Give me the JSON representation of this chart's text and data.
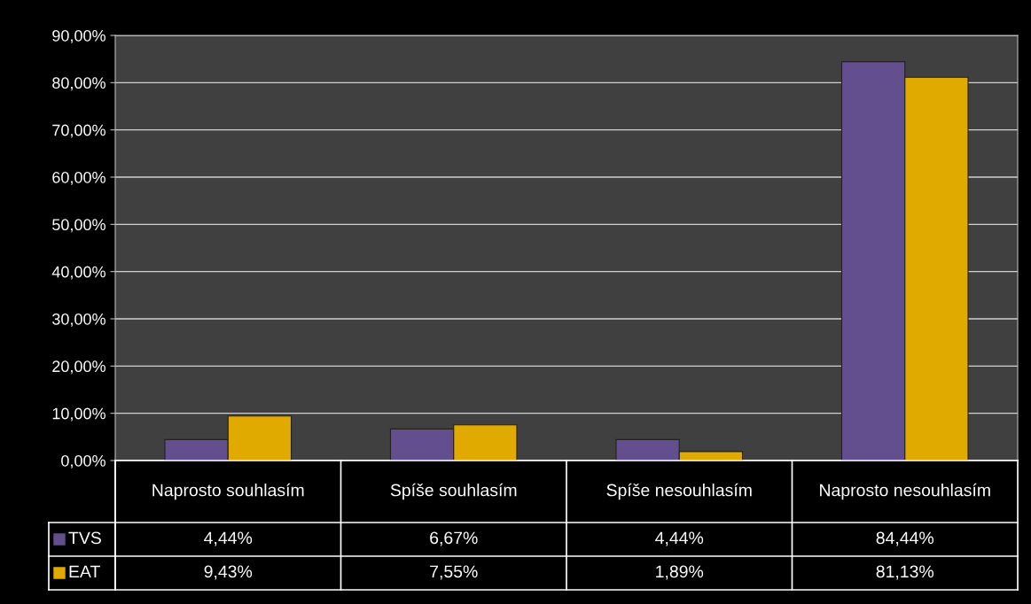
{
  "chart_data": {
    "type": "bar",
    "categories": [
      "Naprosto souhlasím",
      "Spíše souhlasím",
      "Spíše nesouhlasím",
      "Naprosto nesouhlasím"
    ],
    "series": [
      {
        "name": "TVS",
        "color": "#634e8e",
        "values": [
          4.44,
          6.67,
          4.44,
          84.44
        ],
        "value_labels": [
          "4,44%",
          "6,67%",
          "4,44%",
          "84,44%"
        ]
      },
      {
        "name": "EAT",
        "color": "#e0aa00",
        "values": [
          9.43,
          7.55,
          1.89,
          81.13
        ],
        "value_labels": [
          "9,43%",
          "7,55%",
          "1,89%",
          "81,13%"
        ]
      }
    ],
    "ylim": [
      0,
      90
    ],
    "yticks": [
      {
        "value": 0,
        "label": "0,00%"
      },
      {
        "value": 10,
        "label": "10,00%"
      },
      {
        "value": 20,
        "label": "20,00%"
      },
      {
        "value": 30,
        "label": "30,00%"
      },
      {
        "value": 40,
        "label": "40,00%"
      },
      {
        "value": 50,
        "label": "50,00%"
      },
      {
        "value": 60,
        "label": "60,00%"
      },
      {
        "value": 70,
        "label": "70,00%"
      },
      {
        "value": 80,
        "label": "80,00%"
      },
      {
        "value": 90,
        "label": "90,00%"
      }
    ],
    "grid": "y",
    "legend": "bottom"
  }
}
